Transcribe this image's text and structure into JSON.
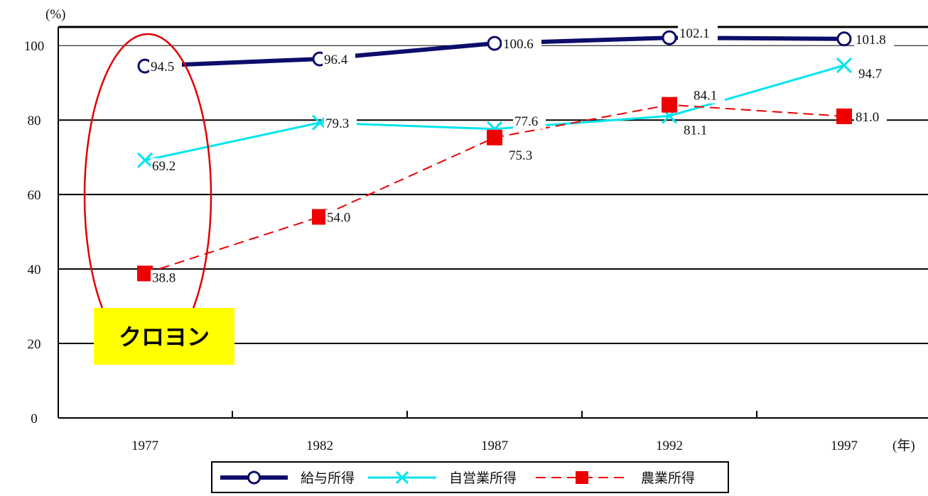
{
  "chart_data": {
    "type": "line",
    "y_unit_label": "(%)",
    "x_unit_label": "(年)",
    "categories": [
      "1977",
      "1982",
      "1987",
      "1992",
      "1997"
    ],
    "yticks": [
      "0",
      "20",
      "40",
      "60",
      "80",
      "100"
    ],
    "ylim": [
      0,
      105
    ],
    "grid": true,
    "legend_position": "bottom",
    "series": [
      {
        "name": "給与所得",
        "values": [
          94.5,
          96.4,
          100.6,
          102.1,
          101.8
        ],
        "labels": [
          "94.5",
          "96.4",
          "100.6",
          "102.1",
          "101.8"
        ],
        "color": "#0d0d6b",
        "marker": "circle",
        "line_style": "solid"
      },
      {
        "name": "自営業所得",
        "values": [
          69.2,
          79.3,
          77.6,
          81.1,
          94.7
        ],
        "labels": [
          "69.2",
          "79.3",
          "77.6",
          "81.1",
          "94.7"
        ],
        "color": "#00e5ee",
        "marker": "x",
        "line_style": "solid"
      },
      {
        "name": "農業所得",
        "values": [
          38.8,
          54.0,
          75.3,
          84.1,
          81.0
        ],
        "labels": [
          "38.8",
          "54.0",
          "75.3",
          "84.1",
          "81.0"
        ],
        "color": "#ee0000",
        "marker": "square",
        "line_style": "dashed"
      }
    ],
    "annotation": {
      "text": "クロヨン",
      "box_color": "#ffff00",
      "ellipse_color": "#e00000",
      "target_category": "1977"
    }
  }
}
